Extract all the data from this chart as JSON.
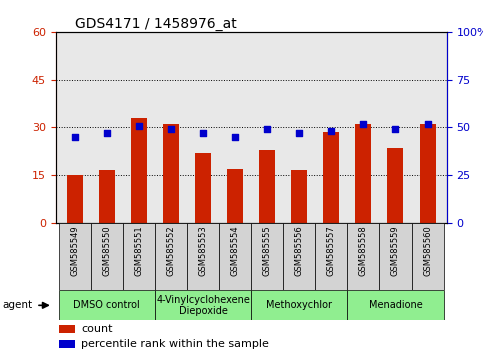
{
  "title": "GDS4171 / 1458976_at",
  "samples": [
    "GSM585549",
    "GSM585550",
    "GSM585551",
    "GSM585552",
    "GSM585553",
    "GSM585554",
    "GSM585555",
    "GSM585556",
    "GSM585557",
    "GSM585558",
    "GSM585559",
    "GSM585560"
  ],
  "counts": [
    15.0,
    16.5,
    33.0,
    31.0,
    22.0,
    17.0,
    23.0,
    16.5,
    28.5,
    31.0,
    23.5,
    31.0
  ],
  "percentile_ranks": [
    45,
    47,
    51,
    49,
    47,
    45,
    49,
    47,
    48,
    52,
    49,
    52
  ],
  "bar_color": "#cc2200",
  "dot_color": "#0000cc",
  "ylim_left": [
    0,
    60
  ],
  "ylim_right": [
    0,
    100
  ],
  "yticks_left": [
    0,
    15,
    30,
    45,
    60
  ],
  "yticks_right": [
    0,
    25,
    50,
    75,
    100
  ],
  "agent_groups": [
    {
      "label": "DMSO control",
      "start": 0,
      "end": 3
    },
    {
      "label": "4-Vinylcyclohexene\nDiepoxide",
      "start": 3,
      "end": 6
    },
    {
      "label": "Methoxychlor",
      "start": 6,
      "end": 9
    },
    {
      "label": "Menadione",
      "start": 9,
      "end": 12
    }
  ],
  "agent_bg": "#90ee90",
  "tick_cell_bg": "#d3d3d3",
  "legend_count_label": "count",
  "legend_pct_label": "percentile rank within the sample",
  "bar_width": 0.5,
  "plot_bg": "#e8e8e8"
}
